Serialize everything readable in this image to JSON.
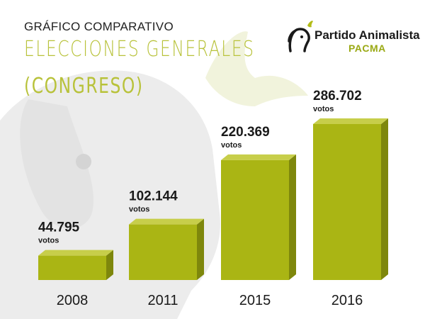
{
  "header": {
    "subtitle": "GRÁFICO COMPARATIVO",
    "title_line1": "ELECCIONES GENERALES",
    "title_line2": "(CONGRESO)"
  },
  "logo": {
    "name": "Partido Animalista",
    "acronym": "PACMA",
    "icon": "dog-bird-logo-icon"
  },
  "colors": {
    "accent": "#b3bc17",
    "bar_front": "#aab514",
    "bar_top": "#c7ce4a",
    "bar_side": "#7e870c",
    "title": "#b8c23a",
    "text": "#1a1a1a",
    "background_art": "#e9e9e9"
  },
  "chart_data": {
    "type": "bar",
    "categories": [
      "2008",
      "2011",
      "2015",
      "2016"
    ],
    "values": [
      44795,
      102144,
      220369,
      286702
    ],
    "value_labels": [
      "44.795",
      "102.144",
      "220.369",
      "286.702"
    ],
    "unit_label": "votos",
    "title": "ELECCIONES GENERALES (CONGRESO)",
    "subtitle": "GRÁFICO COMPARATIVO",
    "xlabel": "",
    "ylabel": "",
    "ylim": [
      0,
      300000
    ],
    "grid": false,
    "legend": "none",
    "style": "3d-bar"
  }
}
